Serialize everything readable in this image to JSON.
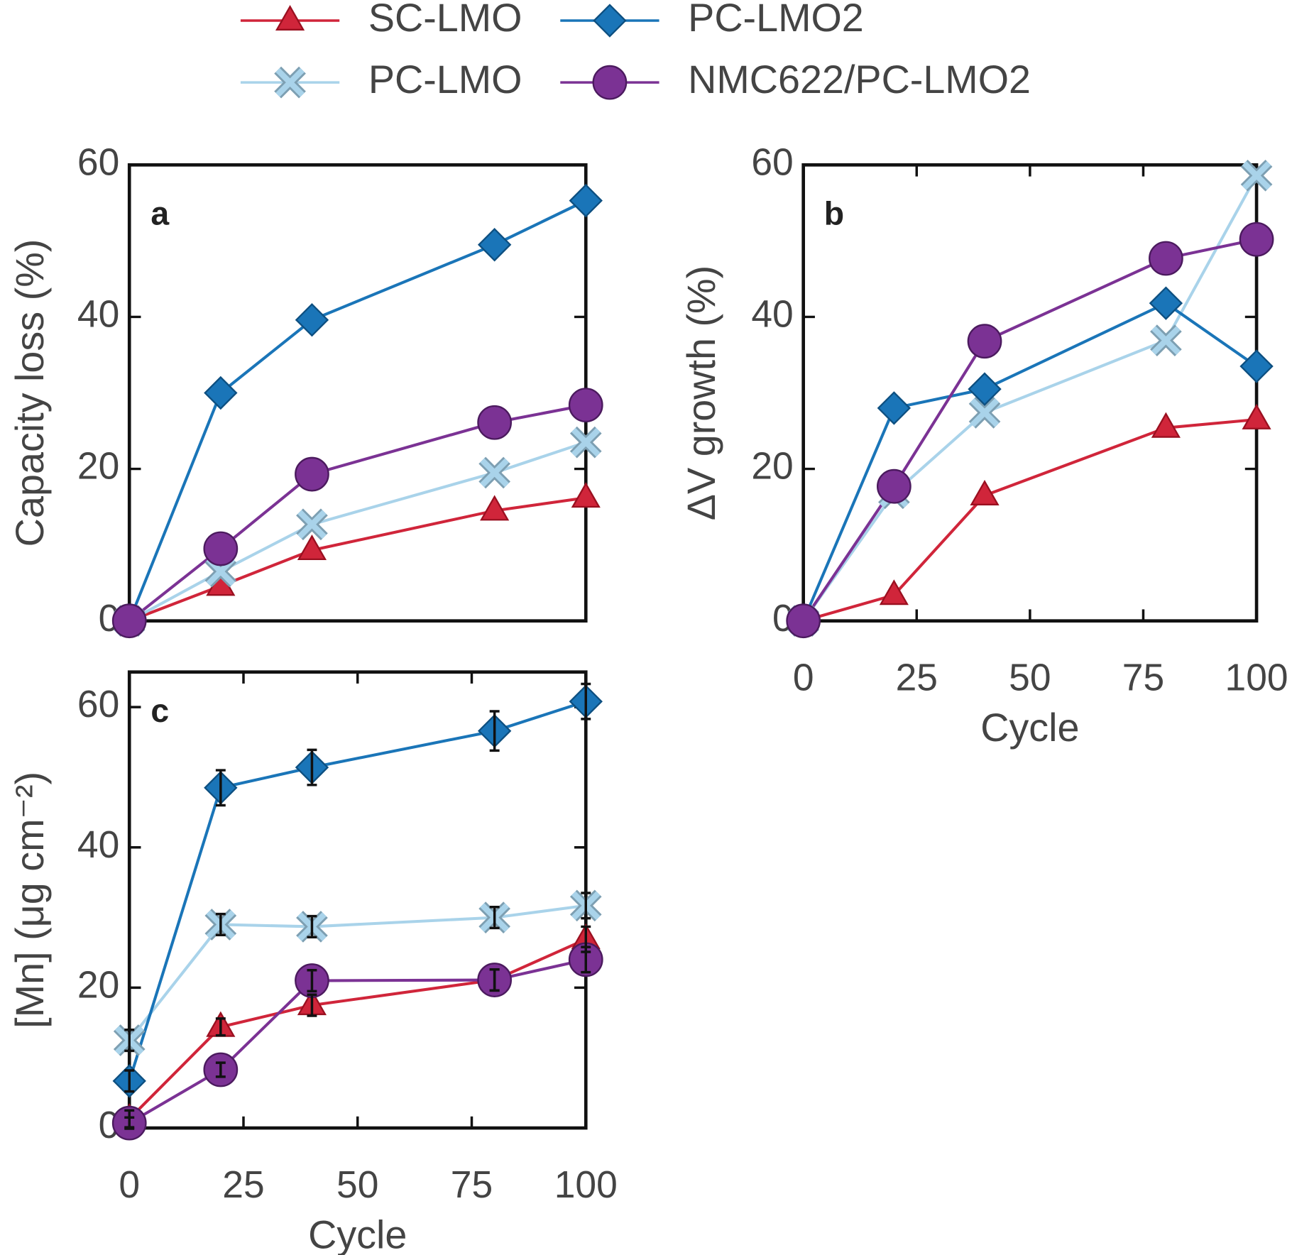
{
  "chart_data": [
    {
      "type": "line",
      "panel": "a",
      "ylabel": "Capacity loss (%)",
      "x": [
        0,
        20,
        40,
        80,
        100
      ],
      "xlim": [
        0,
        100
      ],
      "ylim": [
        0,
        60
      ],
      "yticks": [
        0,
        20,
        40,
        60
      ],
      "series": [
        {
          "name": "SC-LMO",
          "color": "#d0253a",
          "marker": "triangle",
          "values": [
            0,
            4.6,
            9.3,
            14.5,
            16.2
          ]
        },
        {
          "name": "PC-LMO",
          "color": "#a9d3ea",
          "marker": "x",
          "values": [
            0,
            6.5,
            12.7,
            19.5,
            23.5
          ]
        },
        {
          "name": "PC-LMO2",
          "color": "#1a75b8",
          "marker": "diamond",
          "values": [
            0,
            30,
            39.6,
            49.5,
            55.3
          ]
        },
        {
          "name": "NMC622/PC-LMO2",
          "color": "#7b3294",
          "marker": "circle",
          "values": [
            0,
            9.5,
            19.3,
            26.1,
            28.4
          ]
        }
      ]
    },
    {
      "type": "line",
      "panel": "b",
      "ylabel": "ΔV growth (%)",
      "xlabel": "Cycle",
      "x": [
        0,
        20,
        40,
        80,
        100
      ],
      "xlim": [
        0,
        100
      ],
      "xticks": [
        0,
        25,
        50,
        75,
        100
      ],
      "ylim": [
        0,
        60
      ],
      "yticks": [
        0,
        20,
        40,
        60
      ],
      "series": [
        {
          "name": "SC-LMO",
          "color": "#d0253a",
          "marker": "triangle",
          "values": [
            0,
            3.4,
            16.5,
            25.4,
            26.5
          ]
        },
        {
          "name": "PC-LMO",
          "color": "#a9d3ea",
          "marker": "x",
          "values": [
            0,
            16.8,
            27.4,
            36.9,
            58.6
          ]
        },
        {
          "name": "PC-LMO2",
          "color": "#1a75b8",
          "marker": "diamond",
          "values": [
            0,
            28,
            30.5,
            41.8,
            33.5
          ]
        },
        {
          "name": "NMC622/PC-LMO2",
          "color": "#7b3294",
          "marker": "circle",
          "values": [
            0,
            17.7,
            36.8,
            47.7,
            50.2
          ]
        }
      ]
    },
    {
      "type": "line",
      "panel": "c",
      "ylabel": "[Mn] (μg cm⁻²)",
      "xlabel": "Cycle",
      "x": [
        0,
        20,
        40,
        80,
        100
      ],
      "xlim": [
        0,
        100
      ],
      "xticks": [
        0,
        25,
        50,
        75,
        100
      ],
      "ylim": [
        0,
        65
      ],
      "yticks": [
        0,
        20,
        40,
        60
      ],
      "series": [
        {
          "name": "SC-LMO",
          "color": "#d0253a",
          "marker": "triangle",
          "values": [
            1.3,
            14.4,
            17.5,
            21.1,
            26.9
          ],
          "errors": [
            1.2,
            1.2,
            1.5,
            1.5,
            1.8
          ]
        },
        {
          "name": "PC-LMO",
          "color": "#a9d3ea",
          "marker": "x",
          "values": [
            12.5,
            29,
            28.7,
            30,
            31.7
          ],
          "errors": [
            1.5,
            1.5,
            1.5,
            1.5,
            1.8
          ]
        },
        {
          "name": "PC-LMO2",
          "color": "#1a75b8",
          "marker": "diamond",
          "values": [
            6.7,
            48.5,
            51.4,
            56.6,
            60.8
          ],
          "errors": [
            1.5,
            2.5,
            2.5,
            2.8,
            2.5
          ]
        },
        {
          "name": "NMC622/PC-LMO2",
          "color": "#7b3294",
          "marker": "circle",
          "values": [
            0.7,
            8.3,
            21,
            21.1,
            24
          ],
          "errors": [
            0.8,
            1,
            1.5,
            1.5,
            1.8
          ]
        }
      ]
    }
  ]
}
